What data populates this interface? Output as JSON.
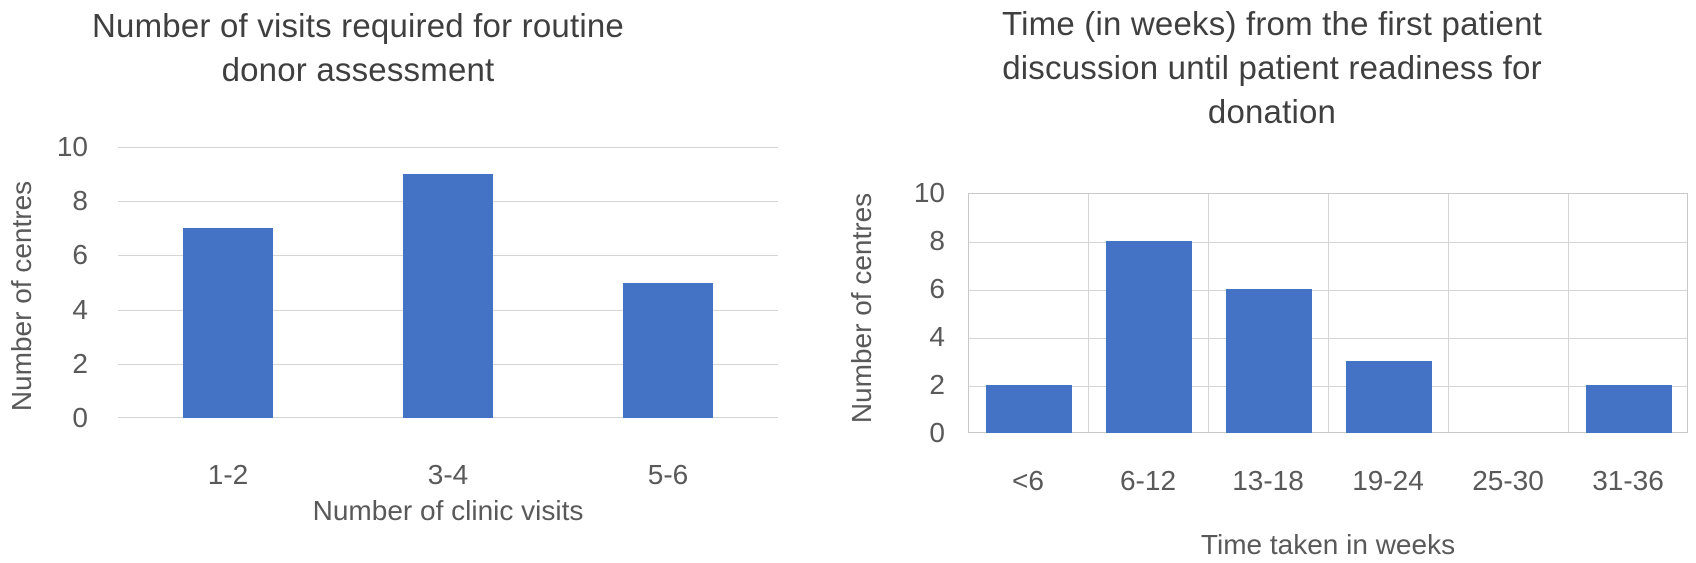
{
  "figure": {
    "background": "#ffffff"
  },
  "colors": {
    "bar_fill": "#4472C4",
    "gridline": "#D5D5D5",
    "plot_border": "#C9C9C9",
    "axis_text": "#595959",
    "title_text": "#3F3F3F"
  },
  "chart_data": [
    {
      "type": "bar",
      "title": "Number of visits required for routine donor assessment",
      "title_lines": [
        "Number of visits required for routine",
        "donor assessment"
      ],
      "categories": [
        "1-2",
        "3-4",
        "5-6"
      ],
      "values": [
        7,
        9,
        5
      ],
      "xlabel": "Number of clinic visits",
      "ylabel": "Number of centres",
      "ylim": [
        0,
        10
      ],
      "yticks": [
        0,
        2,
        4,
        6,
        8,
        10
      ],
      "grid": "horizontal",
      "legend": "none",
      "bar_color": "#4472C4"
    },
    {
      "type": "bar",
      "title": "Time (in weeks) from the first patient discussion until patient readiness for donation",
      "title_lines": [
        "Time (in weeks) from the first patient",
        "discussion until patient readiness for",
        "donation"
      ],
      "categories": [
        "<6",
        "6-12",
        "13-18",
        "19-24",
        "25-30",
        "31-36"
      ],
      "values": [
        2,
        8,
        6,
        3,
        0,
        2
      ],
      "xlabel": "Time taken in weeks",
      "ylabel": "Number of centres",
      "ylim": [
        0,
        10
      ],
      "yticks": [
        0,
        2,
        4,
        6,
        8,
        10
      ],
      "grid": "both",
      "legend": "none",
      "bar_color": "#4472C4"
    }
  ]
}
